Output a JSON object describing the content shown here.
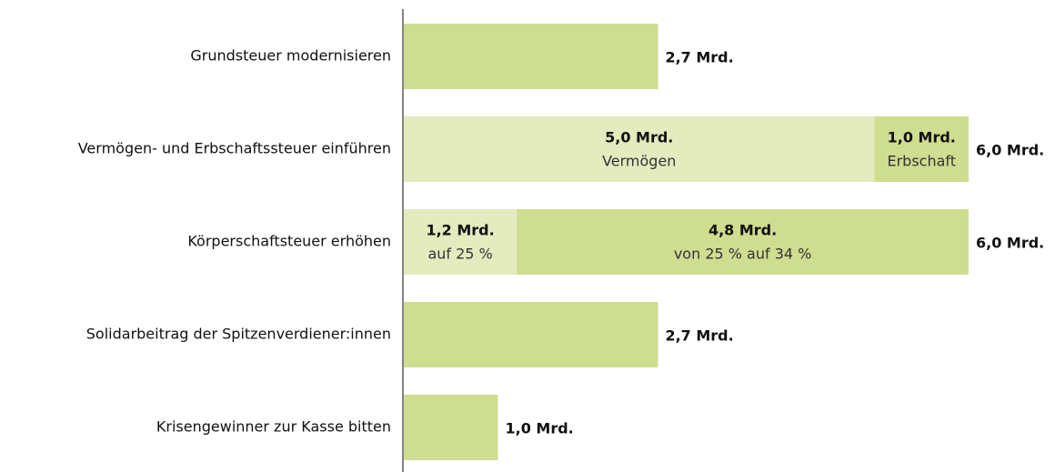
{
  "chart_data": {
    "type": "bar",
    "orientation": "horizontal",
    "xlim": [
      0,
      6
    ],
    "rows": [
      {
        "label": "Grundsteuer modernisieren",
        "segments": [
          {
            "value": 2.7,
            "value_label": "2,7 Mrd.",
            "color": "#cedd90"
          }
        ]
      },
      {
        "label": "Vermögen- und Erbschaftssteuer einführen",
        "segments": [
          {
            "value": 5.0,
            "value_label": "5,0 Mrd.",
            "name": "Vermögen",
            "color": "#e3ebbf"
          },
          {
            "value": 1.0,
            "value_label": "1,0 Mrd.",
            "name": "Erbschaft",
            "color": "#cedd90"
          }
        ],
        "total": 6.0,
        "total_label": "6,0 Mrd."
      },
      {
        "label": "Körperschaftsteuer erhöhen",
        "segments": [
          {
            "value": 1.2,
            "value_label": "1,2 Mrd.",
            "name": "auf 25 %",
            "color": "#e3ebbf"
          },
          {
            "value": 4.8,
            "value_label": "4,8 Mrd.",
            "name": "von 25 % auf 34 %",
            "color": "#cedd90"
          }
        ],
        "total": 6.0,
        "total_label": "6,0 Mrd."
      },
      {
        "label": "Solidarbeitrag der Spitzenverdiener:innen",
        "segments": [
          {
            "value": 2.7,
            "value_label": "2,7 Mrd.",
            "color": "#cedd90"
          }
        ]
      },
      {
        "label": "Krisengewinner zur Kasse bitten",
        "segments": [
          {
            "value": 1.0,
            "value_label": "1,0 Mrd.",
            "color": "#cedd90"
          }
        ]
      }
    ]
  }
}
